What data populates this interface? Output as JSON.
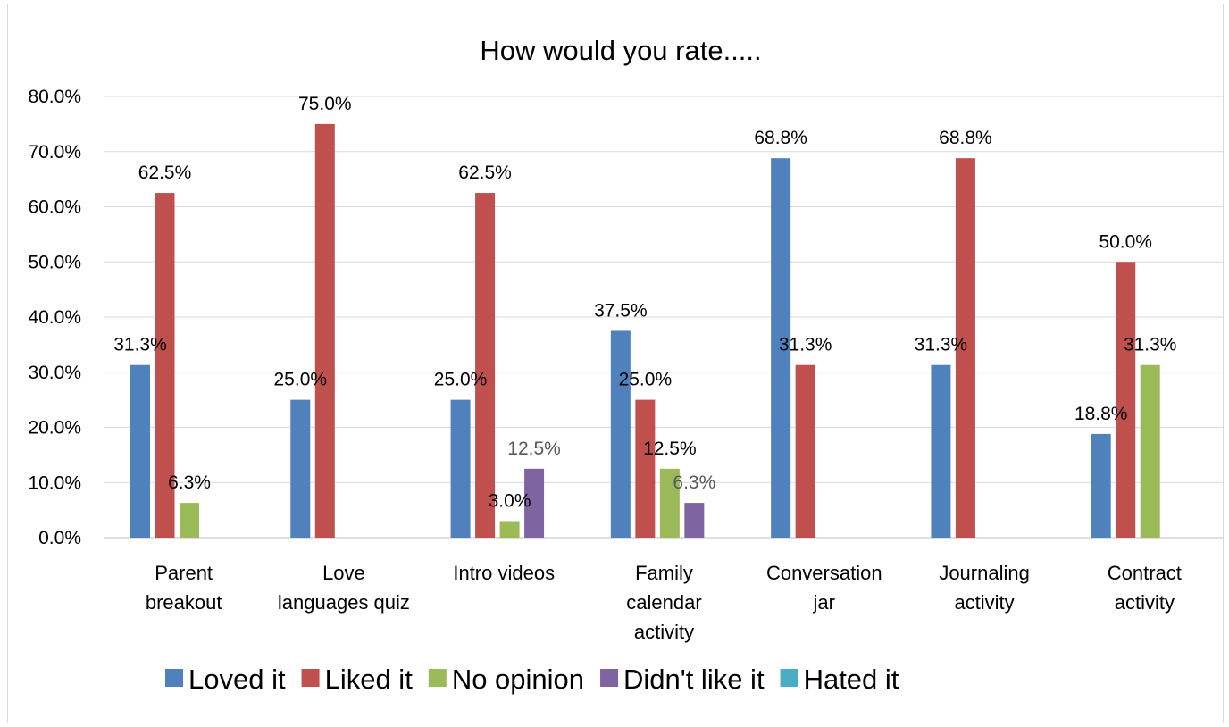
{
  "chart_data": {
    "type": "bar",
    "title": "How would you rate.....",
    "xlabel": "",
    "ylabel": "",
    "ylim": [
      0,
      80
    ],
    "yticks": [
      "0.0%",
      "10.0%",
      "20.0%",
      "30.0%",
      "40.0%",
      "50.0%",
      "60.0%",
      "70.0%",
      "80.0%"
    ],
    "grid": true,
    "legend_position": "bottom",
    "categories": [
      [
        "Parent",
        "breakout"
      ],
      [
        "Love",
        "languages quiz"
      ],
      [
        "Intro videos"
      ],
      [
        "Family",
        "calendar",
        "activity"
      ],
      [
        "Conversation",
        "jar"
      ],
      [
        "Journaling",
        "activity"
      ],
      [
        "Contract",
        "activity"
      ]
    ],
    "series": [
      {
        "name": "Loved it",
        "color": "#4f81bd",
        "label_color": "#000000",
        "values": [
          31.3,
          25.0,
          25.0,
          37.5,
          68.8,
          31.3,
          18.8
        ],
        "labels": [
          "31.3%",
          "25.0%",
          "25.0%",
          "37.5%",
          "68.8%",
          "31.3%",
          "18.8%"
        ]
      },
      {
        "name": "Liked it",
        "color": "#c0504d",
        "label_color": "#000000",
        "values": [
          62.5,
          75.0,
          62.5,
          25.0,
          31.3,
          68.8,
          50.0
        ],
        "labels": [
          "62.5%",
          "75.0%",
          "62.5%",
          "25.0%",
          "31.3%",
          "68.8%",
          "50.0%"
        ]
      },
      {
        "name": "No opinion",
        "color": "#9bbb59",
        "label_color": "#000000",
        "values": [
          6.3,
          0,
          3.0,
          12.5,
          0,
          0,
          31.3
        ],
        "labels": [
          "6.3%",
          "",
          "3.0%",
          "12.5%",
          "",
          "",
          "31.3%"
        ]
      },
      {
        "name": "Didn't like it",
        "color": "#8064a2",
        "label_color": "#595959",
        "values": [
          0,
          0,
          12.5,
          6.3,
          0,
          0,
          0
        ],
        "labels": [
          "",
          "",
          "12.5%",
          "6.3%",
          "",
          "",
          ""
        ]
      },
      {
        "name": "Hated it",
        "color": "#4bacc6",
        "label_color": "#000000",
        "values": [
          0,
          0,
          0,
          0,
          0,
          0,
          0
        ],
        "labels": [
          "",
          "",
          "",
          "",
          "",
          "",
          ""
        ]
      }
    ]
  }
}
